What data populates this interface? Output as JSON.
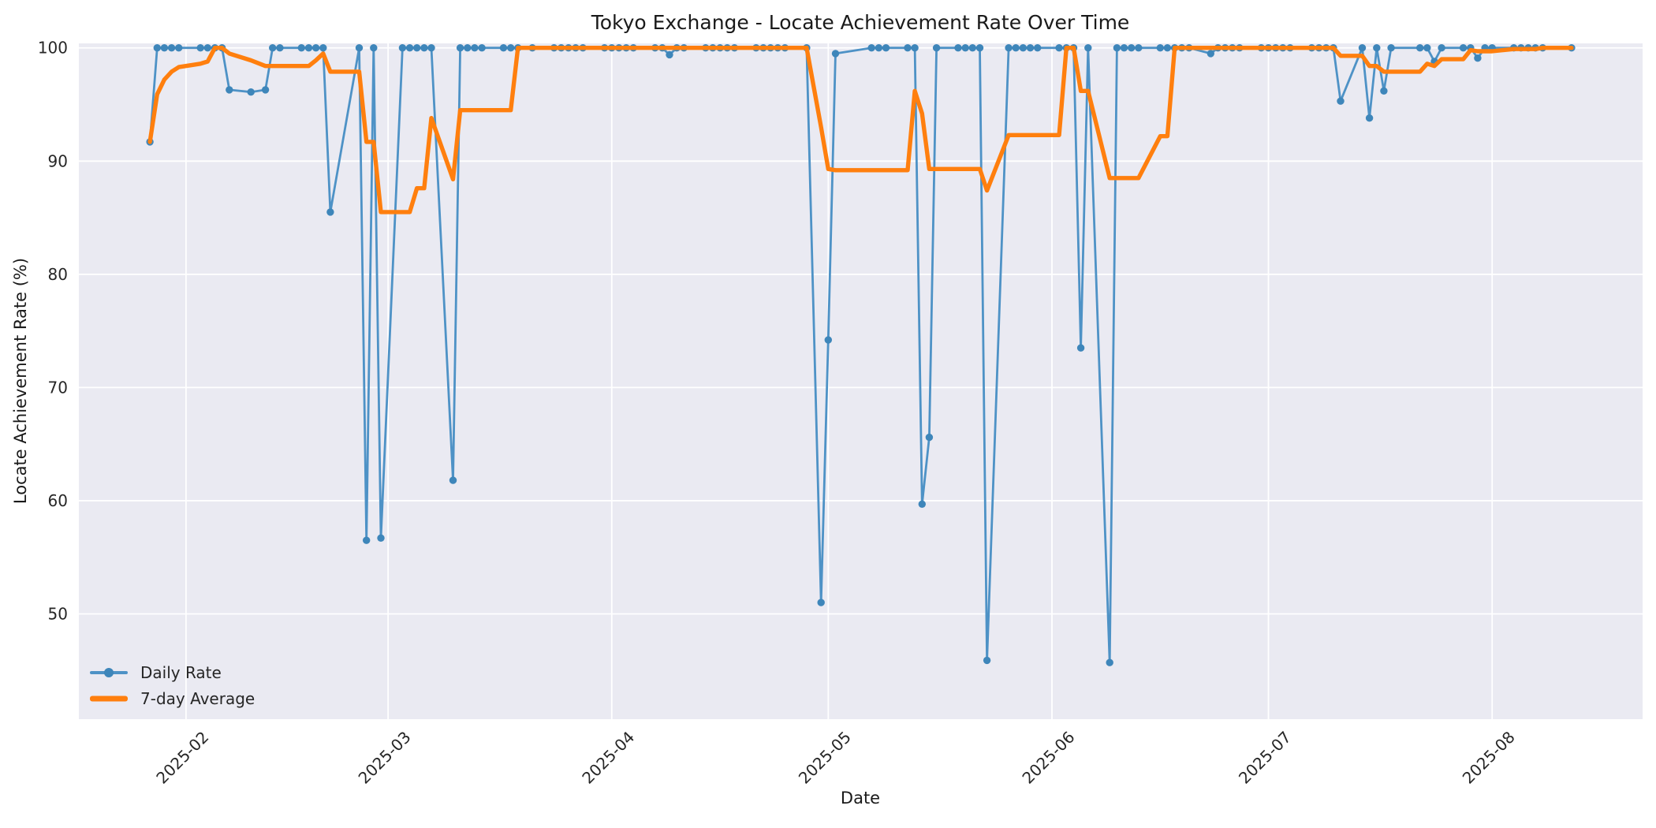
{
  "chart_data": {
    "type": "line",
    "title": "Tokyo Exchange - Locate Achievement Rate Over Time",
    "xlabel": "Date",
    "ylabel": "Locate Achievement Rate (%)",
    "x_ticks": [
      {
        "date": "2025-02-01",
        "label": "2025-02"
      },
      {
        "date": "2025-03-01",
        "label": "2025-03"
      },
      {
        "date": "2025-04-01",
        "label": "2025-04"
      },
      {
        "date": "2025-05-01",
        "label": "2025-05"
      },
      {
        "date": "2025-06-01",
        "label": "2025-06"
      },
      {
        "date": "2025-07-01",
        "label": "2025-07"
      },
      {
        "date": "2025-08-01",
        "label": "2025-08"
      }
    ],
    "y_ticks": [
      50,
      60,
      70,
      80,
      90,
      100
    ],
    "ylim": [
      40.7,
      100.4
    ],
    "x_range": [
      "2025-01-27",
      "2025-08-12"
    ],
    "x_margin_days": 9.85,
    "grid": true,
    "legend_position": "lower left",
    "colors": {
      "figure_background": "#ffffff",
      "axes_background": "#eaeaf2",
      "grid": "#ffffff",
      "text": "#262626",
      "daily_line": "#4e92c6",
      "daily_marker": "#3e86ba",
      "average_line": "#ff7f0e"
    },
    "series": [
      {
        "name": "Daily Rate",
        "color": "#4e92c6",
        "marker_color": "#3e86ba",
        "marker": true,
        "points": [
          [
            "2025-01-27",
            91.7
          ],
          [
            "2025-01-28",
            100
          ],
          [
            "2025-01-29",
            100
          ],
          [
            "2025-01-30",
            100
          ],
          [
            "2025-01-31",
            100
          ],
          [
            "2025-02-03",
            100
          ],
          [
            "2025-02-04",
            100
          ],
          [
            "2025-02-05",
            100
          ],
          [
            "2025-02-06",
            100
          ],
          [
            "2025-02-07",
            96.3
          ],
          [
            "2025-02-10",
            96.1
          ],
          [
            "2025-02-12",
            96.3
          ],
          [
            "2025-02-13",
            100
          ],
          [
            "2025-02-14",
            100
          ],
          [
            "2025-02-17",
            100
          ],
          [
            "2025-02-18",
            100
          ],
          [
            "2025-02-19",
            100
          ],
          [
            "2025-02-20",
            100
          ],
          [
            "2025-02-21",
            85.5
          ],
          [
            "2025-02-25",
            100
          ],
          [
            "2025-02-26",
            56.5
          ],
          [
            "2025-02-27",
            100
          ],
          [
            "2025-02-28",
            56.7
          ],
          [
            "2025-03-03",
            100
          ],
          [
            "2025-03-04",
            100
          ],
          [
            "2025-03-05",
            100
          ],
          [
            "2025-03-06",
            100
          ],
          [
            "2025-03-07",
            100
          ],
          [
            "2025-03-10",
            61.8
          ],
          [
            "2025-03-11",
            100
          ],
          [
            "2025-03-12",
            100
          ],
          [
            "2025-03-13",
            100
          ],
          [
            "2025-03-14",
            100
          ],
          [
            "2025-03-17",
            100
          ],
          [
            "2025-03-18",
            100
          ],
          [
            "2025-03-19",
            100
          ],
          [
            "2025-03-21",
            100
          ],
          [
            "2025-03-24",
            100
          ],
          [
            "2025-03-25",
            100
          ],
          [
            "2025-03-26",
            100
          ],
          [
            "2025-03-27",
            100
          ],
          [
            "2025-03-28",
            100
          ],
          [
            "2025-03-31",
            100
          ],
          [
            "2025-04-01",
            100
          ],
          [
            "2025-04-02",
            100
          ],
          [
            "2025-04-03",
            100
          ],
          [
            "2025-04-04",
            100
          ],
          [
            "2025-04-07",
            100
          ],
          [
            "2025-04-08",
            100
          ],
          [
            "2025-04-09",
            99.4
          ],
          [
            "2025-04-10",
            100
          ],
          [
            "2025-04-11",
            100
          ],
          [
            "2025-04-14",
            100
          ],
          [
            "2025-04-15",
            100
          ],
          [
            "2025-04-16",
            100
          ],
          [
            "2025-04-17",
            100
          ],
          [
            "2025-04-18",
            100
          ],
          [
            "2025-04-21",
            100
          ],
          [
            "2025-04-22",
            100
          ],
          [
            "2025-04-23",
            100
          ],
          [
            "2025-04-24",
            100
          ],
          [
            "2025-04-25",
            100
          ],
          [
            "2025-04-28",
            100
          ],
          [
            "2025-04-30",
            51.0
          ],
          [
            "2025-05-01",
            74.2
          ],
          [
            "2025-05-02",
            99.5
          ],
          [
            "2025-05-07",
            100
          ],
          [
            "2025-05-08",
            100
          ],
          [
            "2025-05-09",
            100
          ],
          [
            "2025-05-12",
            100
          ],
          [
            "2025-05-13",
            100
          ],
          [
            "2025-05-14",
            59.7
          ],
          [
            "2025-05-15",
            65.6
          ],
          [
            "2025-05-16",
            100
          ],
          [
            "2025-05-19",
            100
          ],
          [
            "2025-05-20",
            100
          ],
          [
            "2025-05-21",
            100
          ],
          [
            "2025-05-22",
            100
          ],
          [
            "2025-05-23",
            45.9
          ],
          [
            "2025-05-26",
            100
          ],
          [
            "2025-05-27",
            100
          ],
          [
            "2025-05-28",
            100
          ],
          [
            "2025-05-29",
            100
          ],
          [
            "2025-05-30",
            100
          ],
          [
            "2025-06-02",
            100
          ],
          [
            "2025-06-03",
            100
          ],
          [
            "2025-06-04",
            100
          ],
          [
            "2025-06-05",
            73.5
          ],
          [
            "2025-06-06",
            100
          ],
          [
            "2025-06-09",
            45.7
          ],
          [
            "2025-06-10",
            100
          ],
          [
            "2025-06-11",
            100
          ],
          [
            "2025-06-12",
            100
          ],
          [
            "2025-06-13",
            100
          ],
          [
            "2025-06-16",
            100
          ],
          [
            "2025-06-17",
            100
          ],
          [
            "2025-06-18",
            100
          ],
          [
            "2025-06-19",
            100
          ],
          [
            "2025-06-20",
            100
          ],
          [
            "2025-06-23",
            99.5
          ],
          [
            "2025-06-24",
            100
          ],
          [
            "2025-06-25",
            100
          ],
          [
            "2025-06-26",
            100
          ],
          [
            "2025-06-27",
            100
          ],
          [
            "2025-06-30",
            100
          ],
          [
            "2025-07-01",
            100
          ],
          [
            "2025-07-02",
            100
          ],
          [
            "2025-07-03",
            100
          ],
          [
            "2025-07-04",
            100
          ],
          [
            "2025-07-07",
            100
          ],
          [
            "2025-07-08",
            100
          ],
          [
            "2025-07-09",
            100
          ],
          [
            "2025-07-10",
            100
          ],
          [
            "2025-07-11",
            95.3
          ],
          [
            "2025-07-14",
            100
          ],
          [
            "2025-07-15",
            93.8
          ],
          [
            "2025-07-16",
            100
          ],
          [
            "2025-07-17",
            96.2
          ],
          [
            "2025-07-18",
            100
          ],
          [
            "2025-07-22",
            100
          ],
          [
            "2025-07-23",
            100
          ],
          [
            "2025-07-24",
            98.8
          ],
          [
            "2025-07-25",
            100
          ],
          [
            "2025-07-28",
            100
          ],
          [
            "2025-07-29",
            100
          ],
          [
            "2025-07-30",
            99.1
          ],
          [
            "2025-07-31",
            100
          ],
          [
            "2025-08-01",
            100
          ],
          [
            "2025-08-04",
            100
          ],
          [
            "2025-08-05",
            100
          ],
          [
            "2025-08-06",
            100
          ],
          [
            "2025-08-07",
            100
          ],
          [
            "2025-08-08",
            100
          ],
          [
            "2025-08-12",
            100
          ]
        ]
      },
      {
        "name": "7-day Average",
        "color": "#ff7f0e",
        "marker": false,
        "points": [
          [
            "2025-01-27",
            91.7
          ],
          [
            "2025-01-28",
            95.9
          ],
          [
            "2025-01-29",
            97.2
          ],
          [
            "2025-01-30",
            97.9
          ],
          [
            "2025-01-31",
            98.3
          ],
          [
            "2025-02-03",
            98.6
          ],
          [
            "2025-02-04",
            98.8
          ],
          [
            "2025-02-05",
            100
          ],
          [
            "2025-02-06",
            100
          ],
          [
            "2025-02-07",
            99.5
          ],
          [
            "2025-02-10",
            98.9
          ],
          [
            "2025-02-12",
            98.4
          ],
          [
            "2025-02-18",
            98.4
          ],
          [
            "2025-02-19",
            98.9
          ],
          [
            "2025-02-20",
            99.5
          ],
          [
            "2025-02-21",
            97.9
          ],
          [
            "2025-02-25",
            97.9
          ],
          [
            "2025-02-26",
            91.7
          ],
          [
            "2025-02-27",
            91.7
          ],
          [
            "2025-02-28",
            85.5
          ],
          [
            "2025-03-04",
            85.5
          ],
          [
            "2025-03-05",
            87.6
          ],
          [
            "2025-03-06",
            87.6
          ],
          [
            "2025-03-07",
            93.8
          ],
          [
            "2025-03-10",
            88.4
          ],
          [
            "2025-03-11",
            94.5
          ],
          [
            "2025-03-18",
            94.5
          ],
          [
            "2025-03-19",
            100
          ],
          [
            "2025-04-28",
            100
          ],
          [
            "2025-04-30",
            93.0
          ],
          [
            "2025-05-01",
            89.3
          ],
          [
            "2025-05-02",
            89.2
          ],
          [
            "2025-05-12",
            89.2
          ],
          [
            "2025-05-13",
            96.2
          ],
          [
            "2025-05-14",
            94.2
          ],
          [
            "2025-05-15",
            89.3
          ],
          [
            "2025-05-22",
            89.3
          ],
          [
            "2025-05-23",
            87.4
          ],
          [
            "2025-05-26",
            92.3
          ],
          [
            "2025-06-02",
            92.3
          ],
          [
            "2025-06-03",
            100
          ],
          [
            "2025-06-04",
            100
          ],
          [
            "2025-06-05",
            96.2
          ],
          [
            "2025-06-06",
            96.2
          ],
          [
            "2025-06-09",
            88.5
          ],
          [
            "2025-06-13",
            88.5
          ],
          [
            "2025-06-16",
            92.2
          ],
          [
            "2025-06-17",
            92.2
          ],
          [
            "2025-06-18",
            100
          ],
          [
            "2025-07-10",
            100
          ],
          [
            "2025-07-11",
            99.3
          ],
          [
            "2025-07-14",
            99.3
          ],
          [
            "2025-07-15",
            98.4
          ],
          [
            "2025-07-16",
            98.4
          ],
          [
            "2025-07-17",
            97.9
          ],
          [
            "2025-07-22",
            97.9
          ],
          [
            "2025-07-23",
            98.6
          ],
          [
            "2025-07-24",
            98.4
          ],
          [
            "2025-07-25",
            99.0
          ],
          [
            "2025-07-28",
            99.0
          ],
          [
            "2025-07-29",
            99.8
          ],
          [
            "2025-07-30",
            99.7
          ],
          [
            "2025-08-01",
            99.7
          ],
          [
            "2025-08-04",
            99.9
          ],
          [
            "2025-08-07",
            99.9
          ],
          [
            "2025-08-08",
            100
          ],
          [
            "2025-08-12",
            100
          ]
        ]
      }
    ]
  }
}
